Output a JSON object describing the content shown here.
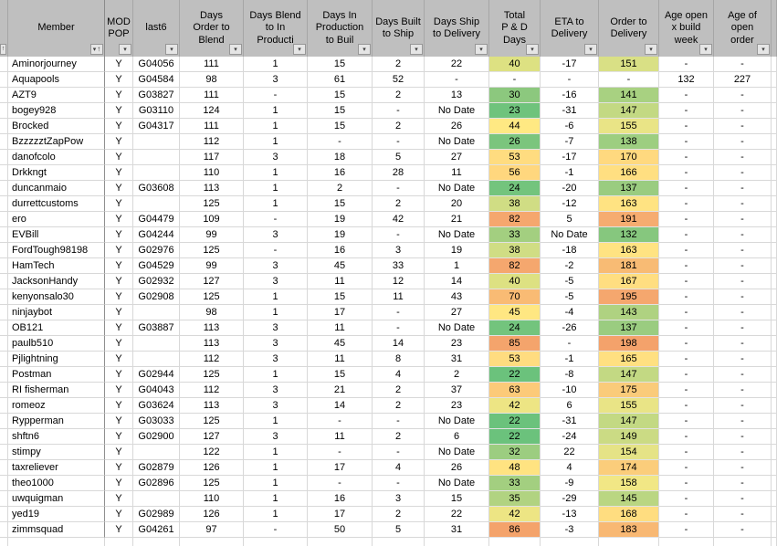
{
  "colors": {
    "header_bg": "#BFBFBF",
    "grid_line": "#D8D8D8",
    "pane_divider": "#8F8F8F",
    "scale_green": "#63BE7B",
    "scale_yellow": "#FFEB84",
    "scale_orange": "#F4A36B"
  },
  "table": {
    "columns": [
      {
        "id": "rowmark",
        "lines": []
      },
      {
        "id": "member",
        "lines": [
          "Member"
        ],
        "sorted": true
      },
      {
        "id": "mod_pop",
        "lines": [
          "MOD",
          "POP"
        ]
      },
      {
        "id": "last6",
        "lines": [
          "last6"
        ]
      },
      {
        "id": "days_order_to_blend",
        "lines": [
          "Days",
          "Order to",
          "Blend"
        ]
      },
      {
        "id": "days_blend_to_in_production",
        "lines": [
          "Days Blend",
          "to  In",
          "Producti"
        ]
      },
      {
        "id": "days_in_production_to_build",
        "lines": [
          "Days In",
          "Production",
          "to Buil"
        ]
      },
      {
        "id": "days_built_to_ship",
        "lines": [
          "Days Built",
          "to Ship"
        ]
      },
      {
        "id": "days_ship_to_delivery",
        "lines": [
          "Days Ship",
          "to Delivery"
        ]
      },
      {
        "id": "total_p_and_d_days",
        "lines": [
          "Total",
          "P & D",
          "Days"
        ]
      },
      {
        "id": "eta_to_delivery",
        "lines": [
          "ETA to",
          "Delivery"
        ]
      },
      {
        "id": "order_to_delivery",
        "lines": [
          "Order to",
          "Delivery"
        ]
      },
      {
        "id": "age_open_x_build_week",
        "lines": [
          "Age open",
          "x build",
          "week"
        ]
      },
      {
        "id": "age_of_open_order",
        "lines": [
          "Age of",
          "open",
          "order"
        ]
      },
      {
        "id": "overflow",
        "lines": []
      }
    ],
    "rows": [
      {
        "member": "Aminorjourney",
        "mod": "Y",
        "last6": "G04056",
        "order_to_blend": "111",
        "blend_to_production": "1",
        "production_to_build": "15",
        "built_to_ship": "2",
        "ship_to_delivery": "22",
        "total": "40",
        "total_color": "#DDE182",
        "eta": "-17",
        "order_to_delivery": "151",
        "order_color": "#D9E085",
        "age_build": "-",
        "age_order": "-"
      },
      {
        "member": "Aquapools",
        "mod": "Y",
        "last6": "G04584",
        "order_to_blend": "98",
        "blend_to_production": "3",
        "production_to_build": "61",
        "built_to_ship": "52",
        "ship_to_delivery": "-",
        "total": "-",
        "total_color": "",
        "eta": "-",
        "order_to_delivery": "-",
        "order_color": "",
        "age_build": "132",
        "age_order": "227"
      },
      {
        "member": "AZT9",
        "mod": "Y",
        "last6": "G03827",
        "order_to_blend": "111",
        "blend_to_production": "-",
        "production_to_build": "15",
        "built_to_ship": "2",
        "ship_to_delivery": "13",
        "total": "30",
        "total_color": "#8CC87E",
        "eta": "-16",
        "order_to_delivery": "141",
        "order_color": "#A8D181",
        "age_build": "-",
        "age_order": "-"
      },
      {
        "member": "bogey928",
        "mod": "Y",
        "last6": "G03110",
        "order_to_blend": "124",
        "blend_to_production": "1",
        "production_to_build": "15",
        "built_to_ship": "-",
        "ship_to_delivery": "No Date",
        "total": "23",
        "total_color": "#6FC37C",
        "eta": "-31",
        "order_to_delivery": "147",
        "order_color": "#C3D983",
        "age_build": "-",
        "age_order": "-"
      },
      {
        "member": "Brocked",
        "mod": "Y",
        "last6": "G04317",
        "order_to_blend": "111",
        "blend_to_production": "1",
        "production_to_build": "15",
        "built_to_ship": "2",
        "ship_to_delivery": "26",
        "total": "44",
        "total_color": "#FFE983",
        "eta": "-6",
        "order_to_delivery": "155",
        "order_color": "#E9E486",
        "age_build": "-",
        "age_order": "-"
      },
      {
        "member": "BzzzzztZapPow",
        "mod": "Y",
        "last6": "",
        "order_to_blend": "112",
        "blend_to_production": "1",
        "production_to_build": "-",
        "built_to_ship": "-",
        "ship_to_delivery": "No Date",
        "total": "26",
        "total_color": "#7BC57D",
        "eta": "-7",
        "order_to_delivery": "138",
        "order_color": "#9DCE80",
        "age_build": "-",
        "age_order": "-"
      },
      {
        "member": "danofcolo",
        "mod": "Y",
        "last6": "",
        "order_to_blend": "117",
        "blend_to_production": "3",
        "production_to_build": "18",
        "built_to_ship": "5",
        "ship_to_delivery": "27",
        "total": "53",
        "total_color": "#FFDC80",
        "eta": "-17",
        "order_to_delivery": "170",
        "order_color": "#FFD97F",
        "age_build": "-",
        "age_order": "-"
      },
      {
        "member": "Drkkngt",
        "mod": "Y",
        "last6": "",
        "order_to_blend": "110",
        "blend_to_production": "1",
        "production_to_build": "16",
        "built_to_ship": "28",
        "ship_to_delivery": "11",
        "total": "56",
        "total_color": "#FFD77E",
        "eta": "-1",
        "order_to_delivery": "166",
        "order_color": "#FFDF81",
        "age_build": "-",
        "age_order": "-"
      },
      {
        "member": "duncanmaio",
        "mod": "Y",
        "last6": "G03608",
        "order_to_blend": "113",
        "blend_to_production": "1",
        "production_to_build": "2",
        "built_to_ship": "-",
        "ship_to_delivery": "No Date",
        "total": "24",
        "total_color": "#73C47D",
        "eta": "-20",
        "order_to_delivery": "137",
        "order_color": "#9ACC80",
        "age_build": "-",
        "age_order": "-"
      },
      {
        "member": "durrettcustoms",
        "mod": "Y",
        "last6": "",
        "order_to_blend": "125",
        "blend_to_production": "1",
        "production_to_build": "15",
        "built_to_ship": "2",
        "ship_to_delivery": "20",
        "total": "38",
        "total_color": "#D0DD84",
        "eta": "-12",
        "order_to_delivery": "163",
        "order_color": "#FFE382",
        "age_build": "-",
        "age_order": "-"
      },
      {
        "member": "ero",
        "mod": "Y",
        "last6": "G04479",
        "order_to_blend": "109",
        "blend_to_production": "-",
        "production_to_build": "19",
        "built_to_ship": "42",
        "ship_to_delivery": "21",
        "total": "82",
        "total_color": "#F5A76E",
        "eta": "5",
        "order_to_delivery": "191",
        "order_color": "#F6AC70",
        "age_build": "-",
        "age_order": "-"
      },
      {
        "member": "EVBill",
        "mod": "Y",
        "last6": "G04244",
        "order_to_blend": "99",
        "blend_to_production": "3",
        "production_to_build": "19",
        "built_to_ship": "-",
        "ship_to_delivery": "No Date",
        "total": "33",
        "total_color": "#A3CF80",
        "eta": "No Date",
        "order_to_delivery": "132",
        "order_color": "#86C77E",
        "age_build": "-",
        "age_order": "-"
      },
      {
        "member": "FordTough98198",
        "mod": "Y",
        "last6": "G02976",
        "order_to_blend": "125",
        "blend_to_production": "-",
        "production_to_build": "16",
        "built_to_ship": "3",
        "ship_to_delivery": "19",
        "total": "38",
        "total_color": "#D0DD84",
        "eta": "-18",
        "order_to_delivery": "163",
        "order_color": "#FFE382",
        "age_build": "-",
        "age_order": "-"
      },
      {
        "member": "HamTech",
        "mod": "Y",
        "last6": "G04529",
        "order_to_blend": "99",
        "blend_to_production": "3",
        "production_to_build": "45",
        "built_to_ship": "33",
        "ship_to_delivery": "1",
        "total": "82",
        "total_color": "#F5A76E",
        "eta": "-2",
        "order_to_delivery": "181",
        "order_color": "#F8BB74",
        "age_build": "-",
        "age_order": "-"
      },
      {
        "member": "JacksonHandy",
        "mod": "Y",
        "last6": "G02932",
        "order_to_blend": "127",
        "blend_to_production": "3",
        "production_to_build": "11",
        "built_to_ship": "12",
        "ship_to_delivery": "14",
        "total": "40",
        "total_color": "#DDE182",
        "eta": "-5",
        "order_to_delivery": "167",
        "order_color": "#FFDE81",
        "age_build": "-",
        "age_order": "-"
      },
      {
        "member": "kenyonsalo30",
        "mod": "Y",
        "last6": "G02908",
        "order_to_blend": "125",
        "blend_to_production": "1",
        "production_to_build": "15",
        "built_to_ship": "11",
        "ship_to_delivery": "43",
        "total": "70",
        "total_color": "#F9BB74",
        "eta": "-5",
        "order_to_delivery": "195",
        "order_color": "#F5A76E",
        "age_build": "-",
        "age_order": "-"
      },
      {
        "member": "ninjaybot",
        "mod": "Y",
        "last6": "",
        "order_to_blend": "98",
        "blend_to_production": "1",
        "production_to_build": "17",
        "built_to_ship": "-",
        "ship_to_delivery": "27",
        "total": "45",
        "total_color": "#FFE782",
        "eta": "-4",
        "order_to_delivery": "143",
        "order_color": "#AFD281",
        "age_build": "-",
        "age_order": "-"
      },
      {
        "member": "OB121",
        "mod": "Y",
        "last6": "G03887",
        "order_to_blend": "113",
        "blend_to_production": "3",
        "production_to_build": "11",
        "built_to_ship": "-",
        "ship_to_delivery": "No Date",
        "total": "24",
        "total_color": "#73C47D",
        "eta": "-26",
        "order_to_delivery": "137",
        "order_color": "#9ACC80",
        "age_build": "-",
        "age_order": "-"
      },
      {
        "member": "paulb510",
        "mod": "Y",
        "last6": "",
        "order_to_blend": "113",
        "blend_to_production": "3",
        "production_to_build": "45",
        "built_to_ship": "14",
        "ship_to_delivery": "23",
        "total": "85",
        "total_color": "#F4A46C",
        "eta": "-",
        "order_to_delivery": "198",
        "order_color": "#F4A26B",
        "age_build": "-",
        "age_order": "-"
      },
      {
        "member": "Pjlightning",
        "mod": "Y",
        "last6": "",
        "order_to_blend": "112",
        "blend_to_production": "3",
        "production_to_build": "11",
        "built_to_ship": "8",
        "ship_to_delivery": "31",
        "total": "53",
        "total_color": "#FFDC80",
        "eta": "-1",
        "order_to_delivery": "165",
        "order_color": "#FFE081",
        "age_build": "-",
        "age_order": "-"
      },
      {
        "member": "Postman",
        "mod": "Y",
        "last6": "G02944",
        "order_to_blend": "125",
        "blend_to_production": "1",
        "production_to_build": "15",
        "built_to_ship": "4",
        "ship_to_delivery": "2",
        "total": "22",
        "total_color": "#6BC27C",
        "eta": "-8",
        "order_to_delivery": "147",
        "order_color": "#C3D983",
        "age_build": "-",
        "age_order": "-"
      },
      {
        "member": "RI fisherman",
        "mod": "Y",
        "last6": "G04043",
        "order_to_blend": "112",
        "blend_to_production": "3",
        "production_to_build": "21",
        "built_to_ship": "2",
        "ship_to_delivery": "37",
        "total": "63",
        "total_color": "#FCCA79",
        "eta": "-10",
        "order_to_delivery": "175",
        "order_color": "#FACB7A",
        "age_build": "-",
        "age_order": "-"
      },
      {
        "member": "romeoz",
        "mod": "Y",
        "last6": "G03624",
        "order_to_blend": "113",
        "blend_to_production": "3",
        "production_to_build": "14",
        "built_to_ship": "2",
        "ship_to_delivery": "23",
        "total": "42",
        "total_color": "#EDE584",
        "eta": "6",
        "order_to_delivery": "155",
        "order_color": "#E9E486",
        "age_build": "-",
        "age_order": "-"
      },
      {
        "member": "Rypperman",
        "mod": "Y",
        "last6": "G03033",
        "order_to_blend": "125",
        "blend_to_production": "1",
        "production_to_build": "-",
        "built_to_ship": "-",
        "ship_to_delivery": "No Date",
        "total": "22",
        "total_color": "#6BC27C",
        "eta": "-31",
        "order_to_delivery": "147",
        "order_color": "#C3D983",
        "age_build": "-",
        "age_order": "-"
      },
      {
        "member": "shftn6",
        "mod": "Y",
        "last6": "G02900",
        "order_to_blend": "127",
        "blend_to_production": "3",
        "production_to_build": "11",
        "built_to_ship": "2",
        "ship_to_delivery": "6",
        "total": "22",
        "total_color": "#6BC27C",
        "eta": "-24",
        "order_to_delivery": "149",
        "order_color": "#CBDB84",
        "age_build": "-",
        "age_order": "-"
      },
      {
        "member": "stimpy",
        "mod": "Y",
        "last6": "",
        "order_to_blend": "122",
        "blend_to_production": "1",
        "production_to_build": "-",
        "built_to_ship": "-",
        "ship_to_delivery": "No Date",
        "total": "32",
        "total_color": "#9CCD80",
        "eta": "22",
        "order_to_delivery": "154",
        "order_color": "#E5E386",
        "age_build": "-",
        "age_order": "-"
      },
      {
        "member": "taxreliever",
        "mod": "Y",
        "last6": "G02879",
        "order_to_blend": "126",
        "blend_to_production": "1",
        "production_to_build": "17",
        "built_to_ship": "4",
        "ship_to_delivery": "26",
        "total": "48",
        "total_color": "#FFE381",
        "eta": "4",
        "order_to_delivery": "174",
        "order_color": "#FBCD7B",
        "age_build": "-",
        "age_order": "-"
      },
      {
        "member": "theo1000",
        "mod": "Y",
        "last6": "G02896",
        "order_to_blend": "125",
        "blend_to_production": "1",
        "production_to_build": "-",
        "built_to_ship": "-",
        "ship_to_delivery": "No Date",
        "total": "33",
        "total_color": "#A3CF80",
        "eta": "-9",
        "order_to_delivery": "158",
        "order_color": "#F1E785",
        "age_build": "-",
        "age_order": "-"
      },
      {
        "member": "uwquigman",
        "mod": "Y",
        "last6": "",
        "order_to_blend": "110",
        "blend_to_production": "1",
        "production_to_build": "16",
        "built_to_ship": "3",
        "ship_to_delivery": "15",
        "total": "35",
        "total_color": "#B1D381",
        "eta": "-29",
        "order_to_delivery": "145",
        "order_color": "#BAD682",
        "age_build": "-",
        "age_order": "-"
      },
      {
        "member": "yed19",
        "mod": "Y",
        "last6": "G02989",
        "order_to_blend": "126",
        "blend_to_production": "1",
        "production_to_build": "17",
        "built_to_ship": "2",
        "ship_to_delivery": "22",
        "total": "42",
        "total_color": "#EDE584",
        "eta": "-13",
        "order_to_delivery": "168",
        "order_color": "#FFDD80",
        "age_build": "-",
        "age_order": "-"
      },
      {
        "member": "zimmsquad",
        "mod": "Y",
        "last6": "G04261",
        "order_to_blend": "97",
        "blend_to_production": "-",
        "production_to_build": "50",
        "built_to_ship": "5",
        "ship_to_delivery": "31",
        "total": "86",
        "total_color": "#F4A36B",
        "eta": "-3",
        "order_to_delivery": "183",
        "order_color": "#F8B873",
        "age_build": "-",
        "age_order": "-"
      }
    ]
  }
}
